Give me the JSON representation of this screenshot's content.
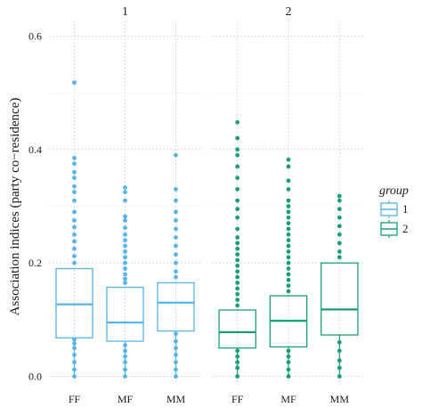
{
  "chart_data": {
    "type": "boxplot",
    "ylabel": "Association indices (party co−residence)",
    "xlabel": "",
    "ylim": [
      -0.005,
      0.64
    ],
    "yticks": [
      0.0,
      0.2,
      0.4,
      0.6
    ],
    "ytick_labels": [
      "0.0",
      "0.2",
      "0.4",
      "0.6"
    ],
    "categories": [
      "FF",
      "MF",
      "MM"
    ],
    "grid": true,
    "legend": {
      "title": "group",
      "position": "right",
      "entries": [
        {
          "label": "1",
          "color": "#56b4e9"
        },
        {
          "label": "2",
          "color": "#1a9e77"
        }
      ]
    },
    "panels": [
      {
        "label": "1",
        "color": "#56b4e9",
        "boxes": [
          {
            "category": "FF",
            "q1": 0.068,
            "median": 0.127,
            "q3": 0.19,
            "whisker_low": 0.0,
            "whisker_high": 0.19,
            "outliers": [
              0.0,
              0.012,
              0.025,
              0.038,
              0.05,
              0.058,
              0.065,
              0.2,
              0.212,
              0.225,
              0.238,
              0.25,
              0.263,
              0.275,
              0.29,
              0.31,
              0.325,
              0.335,
              0.35,
              0.36,
              0.375,
              0.385,
              0.518
            ]
          },
          {
            "category": "MF",
            "q1": 0.062,
            "median": 0.095,
            "q3": 0.157,
            "whisker_low": 0.0,
            "whisker_high": 0.157,
            "outliers": [
              0.0,
              0.012,
              0.025,
              0.035,
              0.045,
              0.055,
              0.165,
              0.172,
              0.18,
              0.19,
              0.2,
              0.21,
              0.22,
              0.23,
              0.24,
              0.25,
              0.262,
              0.275,
              0.282,
              0.31,
              0.325,
              0.333
            ]
          },
          {
            "category": "MM",
            "q1": 0.08,
            "median": 0.13,
            "q3": 0.165,
            "whisker_low": 0.0,
            "whisker_high": 0.165,
            "outliers": [
              0.0,
              0.012,
              0.025,
              0.038,
              0.05,
              0.062,
              0.075,
              0.175,
              0.185,
              0.2,
              0.215,
              0.23,
              0.245,
              0.26,
              0.275,
              0.29,
              0.31,
              0.33,
              0.39
            ]
          }
        ]
      },
      {
        "label": "2",
        "color": "#1a9e77",
        "boxes": [
          {
            "category": "FF",
            "q1": 0.05,
            "median": 0.078,
            "q3": 0.117,
            "whisker_low": 0.0,
            "whisker_high": 0.117,
            "outliers": [
              0.0,
              0.015,
              0.025,
              0.035,
              0.045,
              0.125,
              0.135,
              0.145,
              0.155,
              0.165,
              0.175,
              0.185,
              0.195,
              0.205,
              0.215,
              0.225,
              0.235,
              0.245,
              0.26,
              0.28,
              0.295,
              0.31,
              0.33,
              0.35,
              0.37,
              0.39,
              0.4,
              0.42,
              0.448
            ]
          },
          {
            "category": "MF",
            "q1": 0.052,
            "median": 0.098,
            "q3": 0.142,
            "whisker_low": 0.0,
            "whisker_high": 0.142,
            "outliers": [
              0.0,
              0.012,
              0.025,
              0.035,
              0.045,
              0.15,
              0.16,
              0.17,
              0.18,
              0.19,
              0.2,
              0.21,
              0.22,
              0.23,
              0.24,
              0.25,
              0.26,
              0.27,
              0.28,
              0.29,
              0.3,
              0.31,
              0.33,
              0.345,
              0.37,
              0.382
            ]
          },
          {
            "category": "MM",
            "q1": 0.073,
            "median": 0.118,
            "q3": 0.2,
            "whisker_low": 0.0,
            "whisker_high": 0.2,
            "outliers": [
              0.0,
              0.015,
              0.028,
              0.045,
              0.06,
              0.21,
              0.22,
              0.235,
              0.25,
              0.265,
              0.28,
              0.295,
              0.31,
              0.318
            ]
          }
        ]
      }
    ]
  }
}
